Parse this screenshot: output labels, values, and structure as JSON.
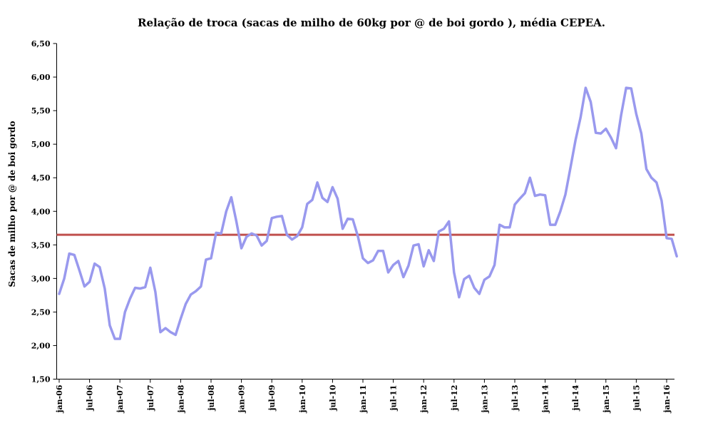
{
  "chart_data": {
    "type": "line",
    "title": "Relação de troca (sacas de milho  de 60kg por @ de boi gordo ), média  CEPEA.",
    "xlabel": "",
    "ylabel": "Sacas de milho por @ de boi gordo",
    "ylim": [
      1.5,
      6.5
    ],
    "yticks": [
      "1,50",
      "2,00",
      "2,50",
      "3,00",
      "3,50",
      "4,00",
      "4,50",
      "5,00",
      "5,50",
      "6,00",
      "6,50"
    ],
    "xticks": [
      "jan-06",
      "jul-06",
      "jan-07",
      "jul-07",
      "jan-08",
      "jul-08",
      "jan-09",
      "jul-09",
      "jan-10",
      "jul-10",
      "jan-11",
      "jul-11",
      "jan-12",
      "jul-12",
      "jan-13",
      "jul-13",
      "jan-14",
      "jul-14",
      "jan-15",
      "jul-15",
      "jan-16"
    ],
    "x_start": "jan-06",
    "x_end": "jun-16",
    "series": [
      {
        "name": "",
        "color": "#9999ee",
        "values": [
          2.77,
          3.0,
          3.37,
          3.35,
          3.12,
          2.88,
          2.95,
          3.22,
          3.17,
          2.85,
          2.3,
          2.1,
          2.1,
          2.5,
          2.7,
          2.86,
          2.85,
          2.87,
          3.16,
          2.8,
          2.2,
          2.26,
          2.2,
          2.16,
          2.4,
          2.62,
          2.76,
          2.81,
          2.88,
          3.28,
          3.3,
          3.68,
          3.67,
          4.0,
          4.21,
          3.85,
          3.45,
          3.62,
          3.67,
          3.64,
          3.49,
          3.56,
          3.9,
          3.92,
          3.93,
          3.65,
          3.58,
          3.63,
          3.76,
          4.11,
          4.17,
          4.43,
          4.2,
          4.14,
          4.36,
          4.19,
          3.74,
          3.89,
          3.88,
          3.63,
          3.3,
          3.23,
          3.27,
          3.41,
          3.41,
          3.09,
          3.2,
          3.26,
          3.02,
          3.19,
          3.49,
          3.51,
          3.18,
          3.42,
          3.26,
          3.7,
          3.74,
          3.85,
          3.09,
          2.72,
          2.99,
          3.04,
          2.86,
          2.77,
          2.98,
          3.03,
          3.2,
          3.8,
          3.76,
          3.76,
          4.1,
          4.19,
          4.27,
          4.5,
          4.23,
          4.25,
          4.24,
          3.8,
          3.8,
          4.0,
          4.25,
          4.65,
          5.06,
          5.4,
          5.84,
          5.63,
          5.17,
          5.16,
          5.23,
          5.1,
          4.94,
          5.43,
          5.84,
          5.83,
          5.45,
          5.16,
          4.63,
          4.5,
          4.43,
          4.16,
          3.6,
          3.59,
          3.33
        ]
      }
    ],
    "reference_line": {
      "value": 3.65,
      "color": "#c0504d"
    }
  }
}
